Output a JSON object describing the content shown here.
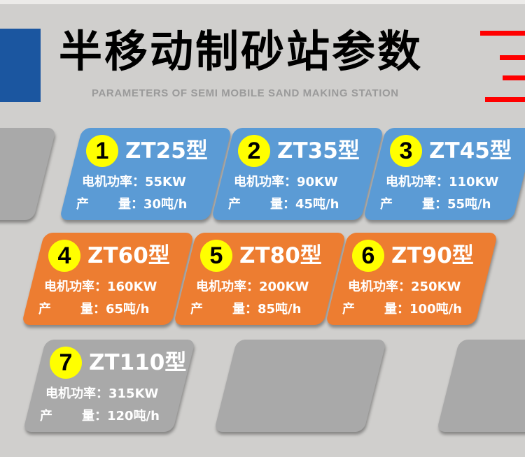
{
  "header": {
    "title": "半移动制砂站参数",
    "subtitle": "PARAMETERS OF SEMI MOBILE SAND MAKING STATION"
  },
  "labels": {
    "power": "电机功率：",
    "output_a": "产",
    "output_b": "量："
  },
  "colors": {
    "blue": "#5b9bd5",
    "orange": "#ed7d31",
    "gray": "#a9a9a9",
    "badge": "#ffff00",
    "accent_blue": "#1b56a0",
    "accent_red": "#ff0000"
  },
  "models": [
    {
      "num": "1",
      "name": "ZT25型",
      "power": "55KW",
      "output": "30吨/h"
    },
    {
      "num": "2",
      "name": "ZT35型",
      "power": "90KW",
      "output": "45吨/h"
    },
    {
      "num": "3",
      "name": "ZT45型",
      "power": "110KW",
      "output": "55吨/h"
    },
    {
      "num": "4",
      "name": "ZT60型",
      "power": "160KW",
      "output": "65吨/h"
    },
    {
      "num": "5",
      "name": "ZT80型",
      "power": "200KW",
      "output": "85吨/h"
    },
    {
      "num": "6",
      "name": "ZT90型",
      "power": "250KW",
      "output": "100吨/h"
    },
    {
      "num": "7",
      "name": "ZT110型",
      "power": "315KW",
      "output": "120吨/h"
    }
  ]
}
